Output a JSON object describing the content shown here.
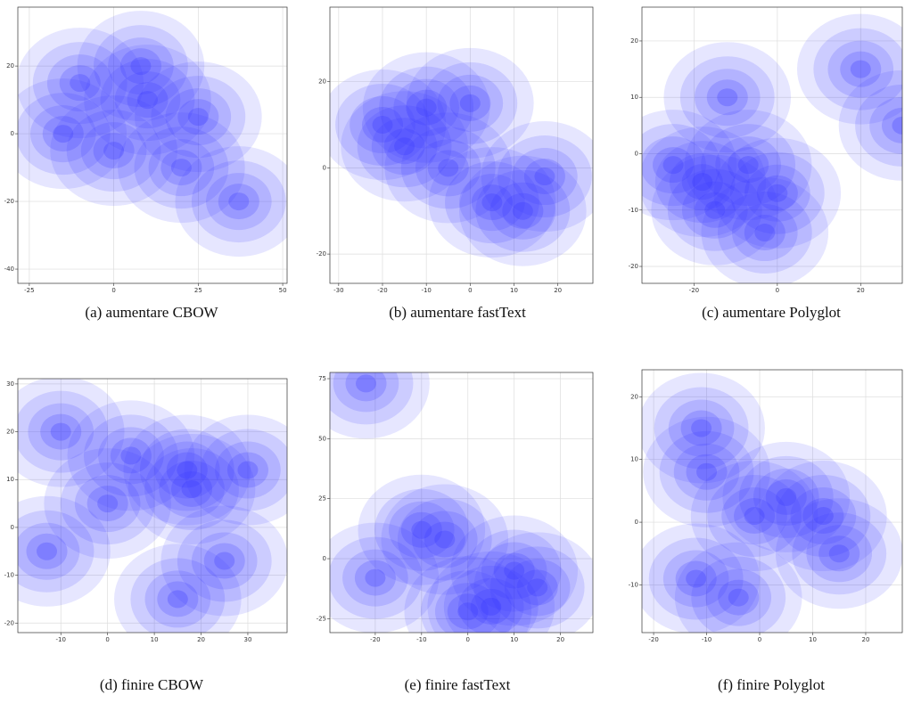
{
  "chart_data": [
    {
      "type": "density",
      "title": "(a)  aumentare CBOW",
      "color": "#3030ff",
      "grid": true,
      "xlim": [
        -28.4,
        51.3
      ],
      "ylim": [
        -44.2,
        37.4
      ],
      "xticks": [
        -25,
        0,
        25,
        50
      ],
      "yticks": [
        -40,
        -20,
        0,
        20
      ],
      "x": [
        -15,
        8,
        0,
        37,
        20,
        10,
        -10,
        25
      ],
      "y": [
        0,
        20,
        -5,
        -20,
        -10,
        10,
        15,
        5
      ]
    },
    {
      "type": "density",
      "title": "(b)  aumentare fastText",
      "color": "#3030ff",
      "grid": true,
      "xlim": [
        -32,
        28
      ],
      "ylim": [
        -26.8,
        37.3
      ],
      "xticks": [
        -30,
        -20,
        -10,
        0,
        10,
        20
      ],
      "yticks": [
        -20,
        0,
        20
      ],
      "x": [
        -10,
        -20,
        0,
        5,
        12,
        17,
        -5,
        -15
      ],
      "y": [
        14,
        10,
        15,
        -8,
        -10,
        -2,
        0,
        5
      ]
    },
    {
      "type": "density",
      "title": "(c)  aumentare Polyglot",
      "color": "#3030ff",
      "grid": true,
      "xlim": [
        -32.5,
        30
      ],
      "ylim": [
        -23,
        26
      ],
      "xticks": [
        -20,
        0,
        20
      ],
      "yticks": [
        -20,
        -10,
        0,
        10,
        20
      ],
      "x": [
        -12,
        -25,
        -7,
        0,
        -18,
        20,
        30,
        -3,
        -15
      ],
      "y": [
        10,
        -2,
        -2,
        -7,
        -5,
        15,
        5,
        -14,
        -10
      ]
    },
    {
      "type": "density",
      "title": "(d)  finire CBOW",
      "color": "#3030ff",
      "grid": true,
      "xlim": [
        -19.2,
        38.4
      ],
      "ylim": [
        -22,
        31.1
      ],
      "xticks": [
        -10,
        0,
        10,
        20,
        30
      ],
      "yticks": [
        -20,
        -10,
        0,
        10,
        20,
        30
      ],
      "x": [
        17,
        30,
        -13,
        15,
        25,
        5,
        -10,
        0,
        18
      ],
      "y": [
        12,
        12,
        -5,
        -15,
        -7,
        15,
        20,
        5,
        8
      ]
    },
    {
      "type": "density",
      "title": "(e)  finire fastText",
      "color": "#3030ff",
      "grid": true,
      "xlim": [
        -29.8,
        27
      ],
      "ylim": [
        -30.8,
        77.6
      ],
      "xticks": [
        -20,
        -10,
        0,
        10,
        20
      ],
      "yticks": [
        -25,
        0,
        25,
        50,
        75
      ],
      "x": [
        -22,
        0,
        5,
        -20,
        -10,
        10,
        15,
        -5
      ],
      "y": [
        73,
        -22,
        -20,
        -8,
        12,
        -5,
        -12,
        8
      ]
    },
    {
      "type": "density",
      "title": "(f)  finire Polyglot",
      "color": "#3030ff",
      "grid": true,
      "xlim": [
        -22.2,
        26.9
      ],
      "ylim": [
        -17.6,
        24.3
      ],
      "xticks": [
        -20,
        -10,
        0,
        10,
        20
      ],
      "yticks": [
        -10,
        0,
        10,
        20
      ],
      "x": [
        -10,
        -1,
        12,
        -12,
        -4,
        -11,
        5,
        15
      ],
      "y": [
        8,
        1,
        1,
        -9,
        -12,
        15,
        4,
        -5
      ]
    }
  ]
}
